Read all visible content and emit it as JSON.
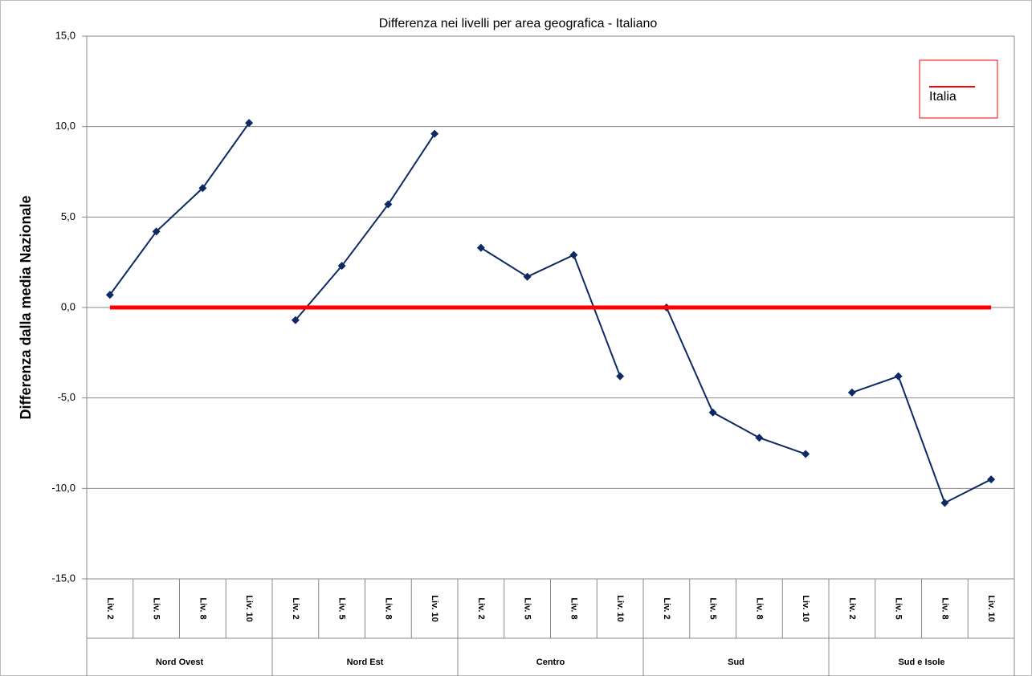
{
  "chart_data": {
    "type": "line",
    "title": "Differenza nei livelli per area geografica - Italiano",
    "y_label": "Differenza dalla media Nazionale",
    "ylim": [
      -15,
      15
    ],
    "yticks": [
      {
        "value": -15,
        "label": "-15,0"
      },
      {
        "value": -10,
        "label": "-10,0"
      },
      {
        "value": -5,
        "label": "-5,0"
      },
      {
        "value": 0,
        "label": "0,0"
      },
      {
        "value": 5,
        "label": "5,0"
      },
      {
        "value": 10,
        "label": "10,0"
      },
      {
        "value": 15,
        "label": "15,0"
      }
    ],
    "grid": true,
    "color": "#0d2a63",
    "groups": [
      {
        "name": "Nord Ovest",
        "categories": [
          "Liv. 2",
          "Liv. 5",
          "Liv. 8",
          "Liv. 10"
        ],
        "values": [
          0.7,
          4.2,
          6.6,
          10.2
        ]
      },
      {
        "name": "Nord Est",
        "categories": [
          "Liv. 2",
          "Liv. 5",
          "Liv. 8",
          "Liv. 10"
        ],
        "values": [
          -0.7,
          2.3,
          5.7,
          9.6
        ]
      },
      {
        "name": "Centro",
        "categories": [
          "Liv. 2",
          "Liv. 5",
          "Liv. 8",
          "Liv. 10"
        ],
        "values": [
          3.3,
          1.7,
          2.9,
          -3.8
        ]
      },
      {
        "name": "Sud",
        "categories": [
          "Liv. 2",
          "Liv. 5",
          "Liv. 8",
          "Liv. 10"
        ],
        "values": [
          0.0,
          -5.8,
          -7.2,
          -8.1
        ]
      },
      {
        "name": "Sud e Isole",
        "categories": [
          "Liv. 2",
          "Liv. 5",
          "Liv. 8",
          "Liv. 10"
        ],
        "values": [
          -4.7,
          -3.8,
          -10.8,
          -9.5
        ]
      }
    ],
    "series": [
      {
        "name": "Italia",
        "color": "#ff0000",
        "values": [
          0,
          0,
          0,
          0,
          0,
          0,
          0,
          0,
          0,
          0,
          0,
          0,
          0,
          0,
          0,
          0,
          0,
          0,
          0,
          0
        ]
      }
    ],
    "legend": "top-right"
  }
}
